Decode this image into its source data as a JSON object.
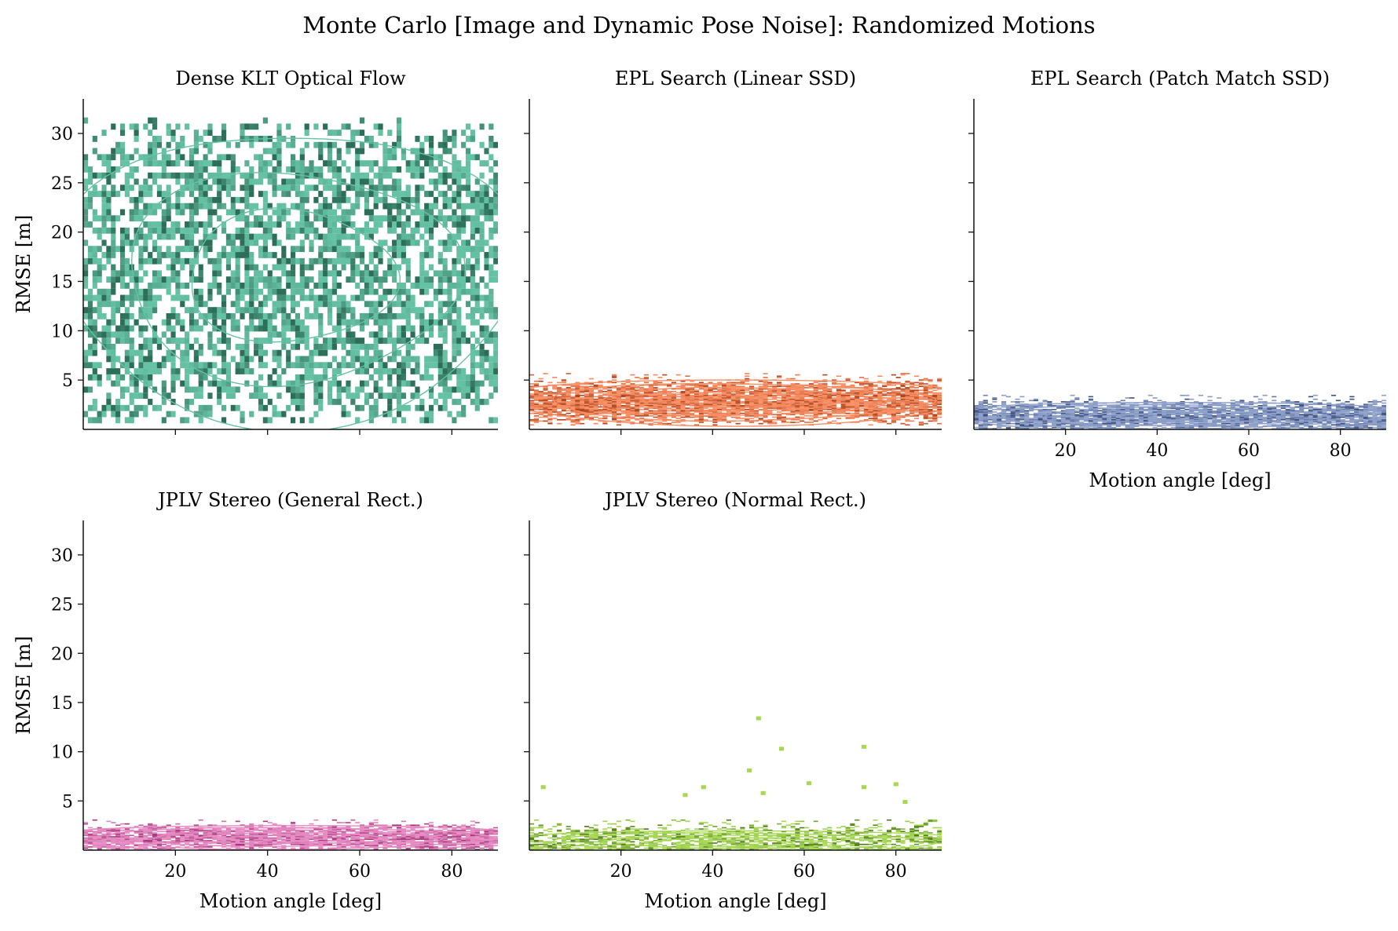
{
  "chart_data": {
    "type": "heatmap",
    "title": "Monte Carlo [Image and Dynamic Pose Noise]: Randomized Motions",
    "xlabel": "Motion angle [deg]",
    "ylabel": "RMSE [m]",
    "xlim": [
      0,
      90
    ],
    "ylim": [
      0,
      33.5
    ],
    "xticks": [
      20,
      40,
      60,
      80
    ],
    "yticks": [
      5,
      10,
      15,
      20,
      25,
      30
    ],
    "grid": false,
    "legend": "none",
    "description_of_marks": "2D histogram of RMSE vs motion angle with KDE contour overlay per method",
    "panels": [
      {
        "title": "Dense KLT Optical Flow",
        "color": "#66c2a5",
        "dark_color": "#2d6e58",
        "angle_range": [
          0,
          90
        ],
        "rmse_range": [
          0.8,
          33.2
        ],
        "rmse_center": 15.5,
        "rmse_spread": 7.0,
        "density": 0.62,
        "show_xticklabels": false,
        "show_xlabel": false,
        "show_ylabel": true,
        "show_yticklabels": true
      },
      {
        "title": "EPL Search (Linear SSD)",
        "color": "#fc8d62",
        "dark_color": "#b0461c",
        "angle_range": [
          0,
          90
        ],
        "rmse_range": [
          0.5,
          5.6
        ],
        "rmse_center": 2.8,
        "rmse_spread": 1.1,
        "density": 0.85,
        "show_xticklabels": false,
        "show_xlabel": false,
        "show_ylabel": false,
        "show_yticklabels": false
      },
      {
        "title": "EPL Search (Patch Match SSD)",
        "color": "#8da0cb",
        "dark_color": "#3d4f7e",
        "angle_range": [
          0,
          90
        ],
        "rmse_range": [
          0.1,
          3.4
        ],
        "rmse_center": 1.3,
        "rmse_spread": 0.8,
        "density": 0.85,
        "show_xticklabels": true,
        "show_xlabel": true,
        "show_ylabel": false,
        "show_yticklabels": false
      },
      {
        "title": "JPLV Stereo (General Rect.)",
        "color": "#e78ac3",
        "dark_color": "#a4377a",
        "angle_range": [
          0,
          90
        ],
        "rmse_range": [
          0.1,
          3.1
        ],
        "rmse_center": 1.2,
        "rmse_spread": 0.7,
        "density": 0.85,
        "show_xticklabels": true,
        "show_xlabel": true,
        "show_ylabel": true,
        "show_yticklabels": true
      },
      {
        "title": "JPLV Stereo (Normal Rect.)",
        "color": "#a6d854",
        "dark_color": "#4f7a1a",
        "angle_range": [
          0,
          90
        ],
        "rmse_range": [
          0.1,
          3.0
        ],
        "rmse_center": 0.7,
        "rmse_spread": 0.9,
        "density": 0.55,
        "outliers": [
          [
            3,
            6.4
          ],
          [
            38,
            6.4
          ],
          [
            34,
            5.6
          ],
          [
            50,
            13.4
          ],
          [
            55,
            10.3
          ],
          [
            48,
            8.1
          ],
          [
            61,
            6.8
          ],
          [
            73,
            10.5
          ],
          [
            73,
            6.4
          ],
          [
            80,
            6.7
          ],
          [
            82,
            4.9
          ],
          [
            51,
            5.8
          ]
        ],
        "show_xticklabels": true,
        "show_xlabel": true,
        "show_ylabel": false,
        "show_yticklabels": false
      }
    ]
  }
}
